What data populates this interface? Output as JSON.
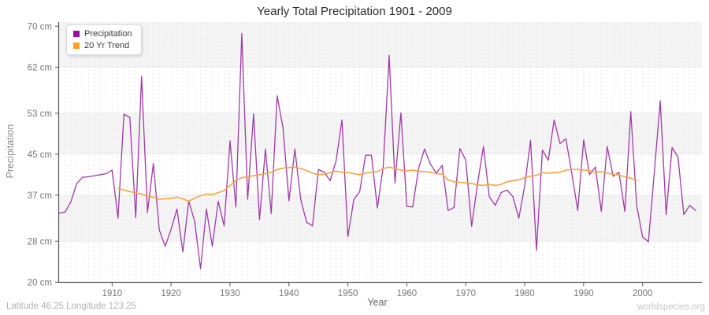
{
  "title": "Yearly Total Precipitation 1901 - 2009",
  "legend": {
    "position": "upper-left",
    "items": [
      {
        "label": "Precipitation",
        "color": "#990f99"
      },
      {
        "label": "20 Yr Trend",
        "color": "#ffa023"
      }
    ]
  },
  "y_axis": {
    "label": "Precipitation",
    "ticks": [
      "70 cm",
      "62 cm",
      "53 cm",
      "45 cm",
      "37 cm",
      "28 cm",
      "20 cm"
    ],
    "values": [
      70,
      62,
      53,
      45,
      37,
      28,
      20
    ]
  },
  "x_axis": {
    "label": "Year",
    "ticks": [
      "1910",
      "1920",
      "1930",
      "1940",
      "1950",
      "1960",
      "1970",
      "1980",
      "1990",
      "2000"
    ],
    "values": [
      1910,
      1920,
      1930,
      1940,
      1950,
      1960,
      1970,
      1980,
      1990,
      2000
    ]
  },
  "footer": {
    "left": "Latitude 46.25 Longitude 123.25",
    "right": "worldspecies.org"
  },
  "chart_data": {
    "type": "line",
    "title": "Yearly Total Precipitation 1901 - 2009",
    "xlabel": "Year",
    "ylabel": "Precipitation",
    "xlim": [
      1901,
      2009
    ],
    "ylim": [
      20,
      70
    ],
    "grid": true,
    "band_colors": [
      "#f4f4f4",
      "#ffffff"
    ],
    "series": [
      {
        "name": "Precipitation",
        "color": "#a138a8",
        "width": 1.3,
        "x_start": 1901,
        "values": [
          33.5,
          33.7,
          35.7,
          39.3,
          40.5,
          40.6,
          40.8,
          41.0,
          41.2,
          41.9,
          32.5,
          52.8,
          52.2,
          32.6,
          60.2,
          33.6,
          43.2,
          30.2,
          27.0,
          30.3,
          34.3,
          25.9,
          35.9,
          31.9,
          22.6,
          34.3,
          27.0,
          35.8,
          31.0,
          47.6,
          34.7,
          68.6,
          36.2,
          52.9,
          32.2,
          46.0,
          33.4,
          56.4,
          50.1,
          35.9,
          46.0,
          36.2,
          31.7,
          31.0,
          42.0,
          41.5,
          39.8,
          43.7,
          51.7,
          28.9,
          36.1,
          37.7,
          44.8,
          44.8,
          34.5,
          42.7,
          64.3,
          39.4,
          53.1,
          34.8,
          34.7,
          42.3,
          46.0,
          43.1,
          41.3,
          42.8,
          34.0,
          34.6,
          46.1,
          43.9,
          30.9,
          39.3,
          46.5,
          36.7,
          35.0,
          37.5,
          38.0,
          36.7,
          32.5,
          38.8,
          47.7,
          26.2,
          45.8,
          43.8,
          51.7,
          47.1,
          48.0,
          41.2,
          34.0,
          47.8,
          41.0,
          42.5,
          33.8,
          46.5,
          40.7,
          41.5,
          33.8,
          53.3,
          35.0,
          28.8,
          27.9,
          41.5,
          55.4,
          33.2,
          46.3,
          44.5,
          33.2,
          35.0,
          34.0
        ]
      },
      {
        "name": "20 Yr Trend",
        "color": "#f8a442",
        "width": 1.6,
        "x_start": 1911,
        "values": [
          38.3,
          38.0,
          37.7,
          37.5,
          37.2,
          36.8,
          36.6,
          36.2,
          36.3,
          36.4,
          36.6,
          36.3,
          35.8,
          36.4,
          36.9,
          37.2,
          37.1,
          37.5,
          37.9,
          38.9,
          39.8,
          40.4,
          40.6,
          40.8,
          41.0,
          41.2,
          41.5,
          42.0,
          42.3,
          42.4,
          42.5,
          42.2,
          41.8,
          41.3,
          41.0,
          41.1,
          41.4,
          41.7,
          41.5,
          41.4,
          41.2,
          41.0,
          41.3,
          41.5,
          41.6,
          42.2,
          42.5,
          42.2,
          41.9,
          41.8,
          41.9,
          41.7,
          41.6,
          41.5,
          41.2,
          41.1,
          40.0,
          39.6,
          39.5,
          39.4,
          39.3,
          39.0,
          38.9,
          39.1,
          38.9,
          39.1,
          39.6,
          39.8,
          40.0,
          40.4,
          40.7,
          40.9,
          41.4,
          41.3,
          41.4,
          41.5,
          41.9,
          42.0,
          42.0,
          41.9,
          41.8,
          41.5,
          41.6,
          41.3,
          41.1,
          40.9,
          40.6,
          40.3,
          39.9
        ]
      }
    ]
  }
}
